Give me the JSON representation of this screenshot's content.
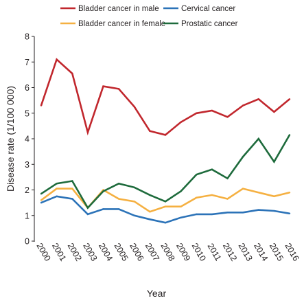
{
  "chart_data": {
    "type": "line",
    "title": "",
    "xlabel": "Year",
    "ylabel": "Disease rate (1/100 000)",
    "ylim": [
      0,
      8
    ],
    "yticks": [
      "0",
      "1",
      "2",
      "3",
      "4",
      "5",
      "6",
      "7",
      "8"
    ],
    "grid": false,
    "legend_position": "top",
    "categories": [
      "2000",
      "2001",
      "2002",
      "2003",
      "2004",
      "2005",
      "2006",
      "2007",
      "2008",
      "2009",
      "2010",
      "2011",
      "2012",
      "2013",
      "2014",
      "2015",
      "2016"
    ],
    "series": [
      {
        "name": "Bladder cancer in male",
        "color": "#c1272d",
        "values": [
          5.3,
          7.1,
          6.55,
          4.25,
          6.05,
          5.95,
          5.25,
          4.3,
          4.15,
          4.65,
          5.0,
          5.1,
          4.85,
          5.3,
          5.55,
          5.05,
          5.55
        ]
      },
      {
        "name": "Bladder cancer in female",
        "color": "#f5b041",
        "values": [
          1.6,
          2.05,
          2.05,
          1.3,
          2.0,
          1.65,
          1.55,
          1.15,
          1.35,
          1.35,
          1.7,
          1.8,
          1.65,
          2.05,
          1.9,
          1.75,
          1.9
        ]
      },
      {
        "name": "Cervical cancer",
        "color": "#2c73b8",
        "values": [
          1.5,
          1.75,
          1.65,
          1.05,
          1.25,
          1.25,
          1.0,
          0.85,
          0.72,
          0.92,
          1.05,
          1.05,
          1.12,
          1.12,
          1.22,
          1.18,
          1.08
        ]
      },
      {
        "name": "Prostatic cancer",
        "color": "#1e6b3c",
        "values": [
          1.85,
          2.25,
          2.35,
          1.3,
          1.95,
          2.25,
          2.1,
          1.8,
          1.55,
          1.95,
          2.6,
          2.8,
          2.45,
          3.3,
          4.0,
          3.1,
          4.15
        ]
      }
    ]
  }
}
